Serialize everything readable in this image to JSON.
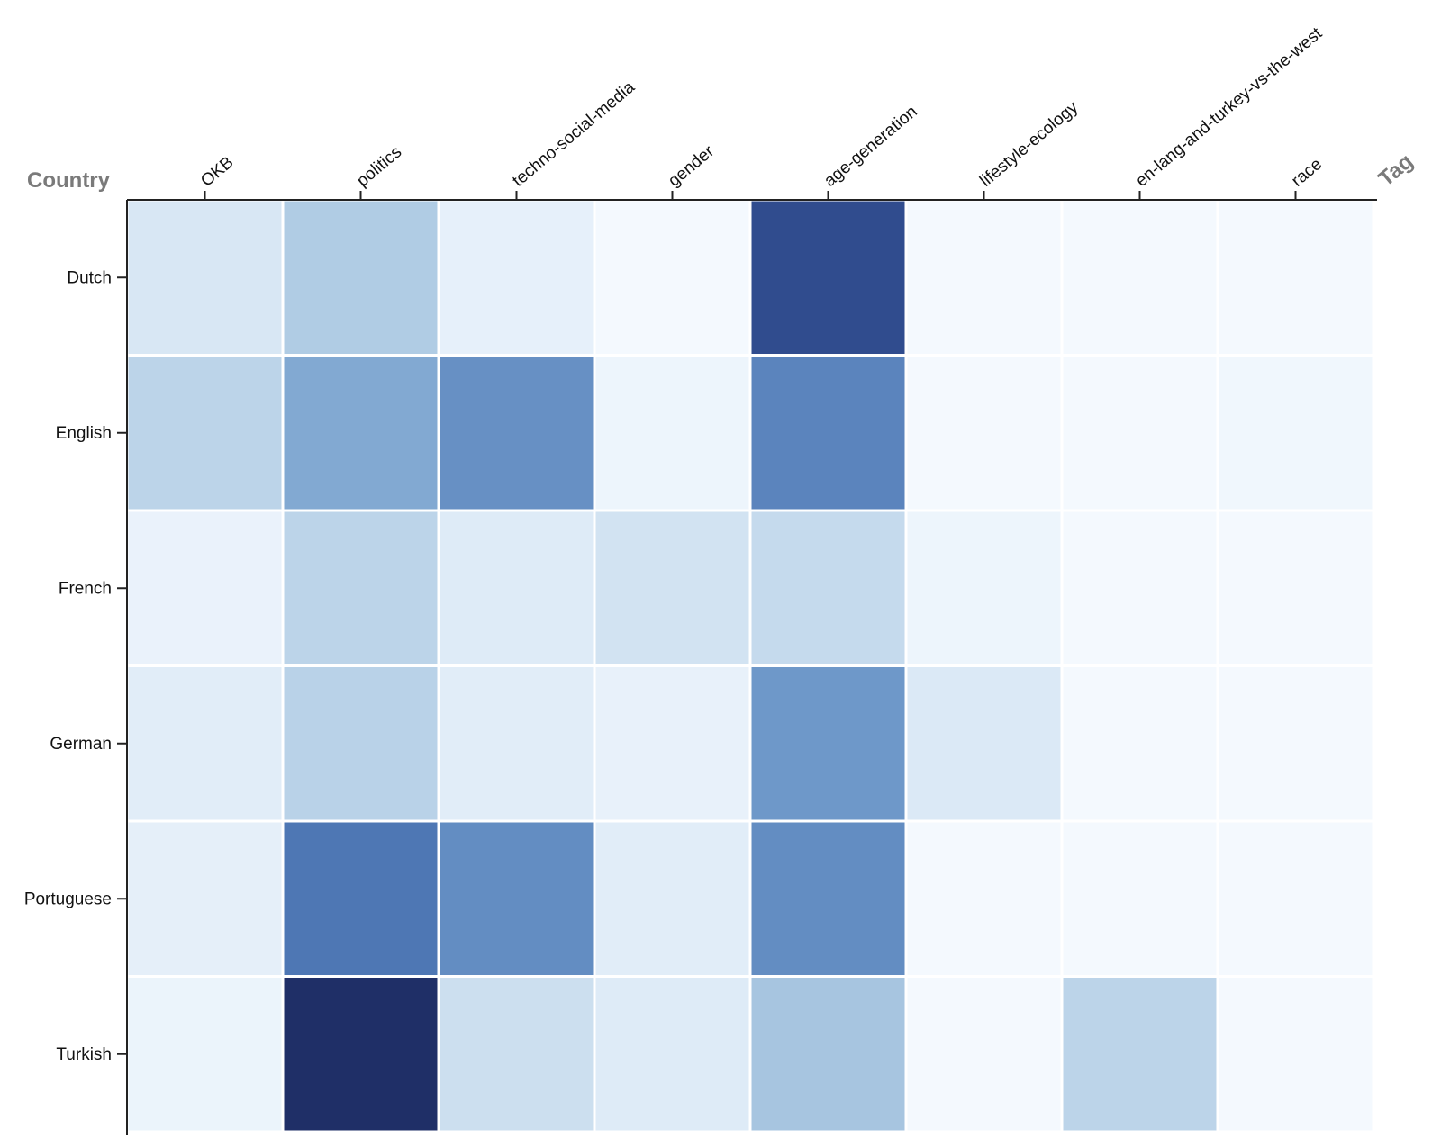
{
  "chart_data": {
    "type": "heatmap",
    "xlabel": "Tag",
    "ylabel": "Country",
    "x_categories": [
      "OKB",
      "politics",
      "techno-social-media",
      "gender",
      "age-generation",
      "lifestyle-ecology",
      "en-lang-and-turkey-vs-the-west",
      "race"
    ],
    "y_categories": [
      "Dutch",
      "English",
      "French",
      "German",
      "Portuguese",
      "Turkish"
    ],
    "values": [
      [
        0.17,
        0.3,
        0.1,
        0.02,
        0.88,
        0.02,
        0.02,
        0.02
      ],
      [
        0.26,
        0.45,
        0.57,
        0.06,
        0.64,
        0.02,
        0.02,
        0.04
      ],
      [
        0.08,
        0.26,
        0.15,
        0.19,
        0.23,
        0.06,
        0.02,
        0.02
      ],
      [
        0.13,
        0.27,
        0.13,
        0.09,
        0.53,
        0.16,
        0.02,
        0.02
      ],
      [
        0.11,
        0.71,
        0.59,
        0.13,
        0.59,
        0.02,
        0.02,
        0.02
      ],
      [
        0.07,
        1.0,
        0.21,
        0.15,
        0.33,
        0.02,
        0.26,
        0.02
      ]
    ],
    "color_scale": "Blues",
    "x_axis_position": "top",
    "y_axis_position": "left",
    "grid": false,
    "legend": "none"
  }
}
